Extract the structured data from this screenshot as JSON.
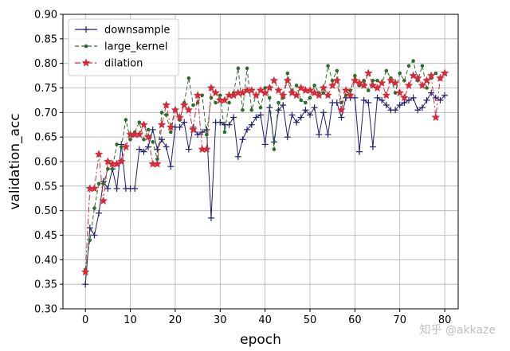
{
  "chart_data": {
    "type": "line",
    "xlabel": "epoch",
    "ylabel": "validation_acc",
    "xlim": [
      -5,
      83
    ],
    "ylim": [
      0.3,
      0.9
    ],
    "xticks": [
      0,
      10,
      20,
      30,
      40,
      50,
      60,
      70,
      80
    ],
    "yticks": [
      0.3,
      0.35,
      0.4,
      0.45,
      0.5,
      0.55,
      0.6,
      0.65,
      0.7,
      0.75,
      0.8,
      0.85,
      0.9
    ],
    "grid": true,
    "legend_position": "upper-left",
    "x": [
      0,
      1,
      2,
      3,
      4,
      5,
      6,
      7,
      8,
      9,
      10,
      11,
      12,
      13,
      14,
      15,
      16,
      17,
      18,
      19,
      20,
      21,
      22,
      23,
      24,
      25,
      26,
      27,
      28,
      29,
      30,
      31,
      32,
      33,
      34,
      35,
      36,
      37,
      38,
      39,
      40,
      41,
      42,
      43,
      44,
      45,
      46,
      47,
      48,
      49,
      50,
      51,
      52,
      53,
      54,
      55,
      56,
      57,
      58,
      59,
      60,
      61,
      62,
      63,
      64,
      65,
      66,
      67,
      68,
      69,
      70,
      71,
      72,
      73,
      74,
      75,
      76,
      77,
      78,
      79,
      80
    ],
    "series": [
      {
        "name": "downsample",
        "color": "#1f1f6e",
        "marker": "plus",
        "dash": "solid",
        "values": [
          0.35,
          0.465,
          0.45,
          0.495,
          0.56,
          0.545,
          0.585,
          0.545,
          0.635,
          0.545,
          0.545,
          0.545,
          0.625,
          0.62,
          0.63,
          0.665,
          0.625,
          0.645,
          0.63,
          0.59,
          0.67,
          0.67,
          0.68,
          0.625,
          0.67,
          0.655,
          0.66,
          0.665,
          0.485,
          0.68,
          0.68,
          0.675,
          0.675,
          0.69,
          0.61,
          0.645,
          0.665,
          0.675,
          0.69,
          0.695,
          0.635,
          0.71,
          0.64,
          0.705,
          0.715,
          0.65,
          0.695,
          0.68,
          0.69,
          0.705,
          0.695,
          0.71,
          0.655,
          0.7,
          0.655,
          0.72,
          0.72,
          0.69,
          0.73,
          0.73,
          0.73,
          0.62,
          0.725,
          0.72,
          0.63,
          0.73,
          0.725,
          0.715,
          0.705,
          0.705,
          0.715,
          0.72,
          0.725,
          0.73,
          0.705,
          0.71,
          0.725,
          0.74,
          0.73,
          0.725,
          0.735
        ]
      },
      {
        "name": "large_kernel",
        "color": "#2a6e2a",
        "marker": "dot",
        "dash": "dashed",
        "values": [
          0.38,
          0.44,
          0.505,
          0.555,
          0.555,
          0.585,
          0.585,
          0.635,
          0.63,
          0.685,
          0.645,
          0.66,
          0.68,
          0.645,
          0.665,
          0.64,
          0.605,
          0.7,
          0.695,
          0.66,
          0.705,
          0.685,
          0.72,
          0.77,
          0.715,
          0.72,
          0.735,
          0.655,
          0.73,
          0.72,
          0.735,
          0.66,
          0.72,
          0.74,
          0.79,
          0.705,
          0.79,
          0.705,
          0.735,
          0.71,
          0.75,
          0.73,
          0.625,
          0.72,
          0.73,
          0.78,
          0.745,
          0.755,
          0.725,
          0.72,
          0.73,
          0.755,
          0.74,
          0.74,
          0.795,
          0.765,
          0.785,
          0.72,
          0.735,
          0.745,
          0.775,
          0.755,
          0.765,
          0.745,
          0.765,
          0.765,
          0.76,
          0.785,
          0.77,
          0.74,
          0.78,
          0.765,
          0.795,
          0.805,
          0.765,
          0.795,
          0.75,
          0.77,
          0.78,
          0.77,
          0.78
        ]
      },
      {
        "name": "dilation",
        "color": "#d62a3a",
        "marker": "star",
        "dash": "dashdot",
        "values": [
          0.375,
          0.545,
          0.545,
          0.615,
          0.52,
          0.6,
          0.595,
          0.595,
          0.6,
          0.63,
          0.655,
          0.655,
          0.655,
          0.675,
          0.65,
          0.595,
          0.595,
          0.675,
          0.715,
          0.67,
          0.705,
          0.69,
          0.715,
          0.705,
          0.665,
          0.735,
          0.625,
          0.625,
          0.75,
          0.74,
          0.725,
          0.725,
          0.735,
          0.735,
          0.74,
          0.74,
          0.745,
          0.745,
          0.735,
          0.745,
          0.74,
          0.75,
          0.765,
          0.745,
          0.735,
          0.765,
          0.74,
          0.735,
          0.75,
          0.745,
          0.745,
          0.74,
          0.735,
          0.75,
          0.735,
          0.755,
          0.765,
          0.705,
          0.745,
          0.735,
          0.765,
          0.76,
          0.755,
          0.78,
          0.755,
          0.75,
          0.76,
          0.735,
          0.765,
          0.76,
          0.74,
          0.73,
          0.755,
          0.775,
          0.77,
          0.755,
          0.765,
          0.775,
          0.69,
          0.77,
          0.78
        ]
      }
    ]
  },
  "watermark": "知乎 @akkaze"
}
